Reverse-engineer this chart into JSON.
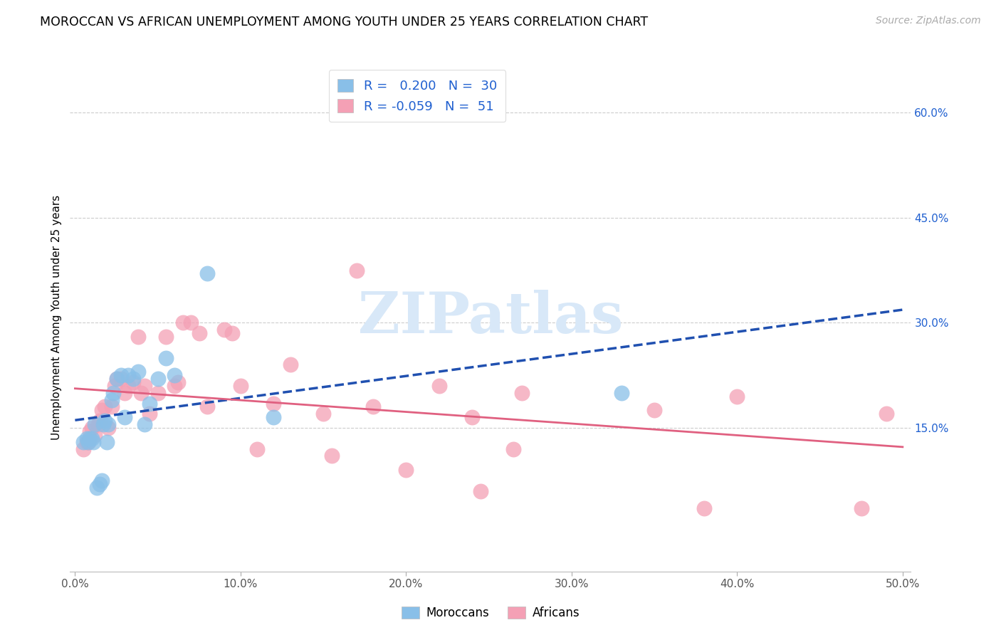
{
  "title": "MOROCCAN VS AFRICAN UNEMPLOYMENT AMONG YOUTH UNDER 25 YEARS CORRELATION CHART",
  "source": "Source: ZipAtlas.com",
  "ylabel": "Unemployment Among Youth under 25 years",
  "xlim": [
    -0.003,
    0.505
  ],
  "ylim": [
    -0.055,
    0.67
  ],
  "xtick_vals": [
    0.0,
    0.1,
    0.2,
    0.3,
    0.4,
    0.5
  ],
  "xticklabels": [
    "0.0%",
    "10.0%",
    "20.0%",
    "30.0%",
    "40.0%",
    "50.0%"
  ],
  "ytick_right_vals": [
    0.15,
    0.3,
    0.45,
    0.6
  ],
  "ytick_right_labels": [
    "15.0%",
    "30.0%",
    "45.0%",
    "60.0%"
  ],
  "moroccan_R": 0.2,
  "moroccan_N": 30,
  "african_R": -0.059,
  "african_N": 51,
  "moroccan_color": "#89bfe8",
  "african_color": "#f4a0b5",
  "moroccan_line_color": "#2050b0",
  "african_line_color": "#e06080",
  "legend_text_color": "#2060d0",
  "watermark_color": "#d8e8f8",
  "moroccan_points_x": [
    0.005,
    0.007,
    0.008,
    0.009,
    0.01,
    0.011,
    0.012,
    0.013,
    0.015,
    0.016,
    0.017,
    0.018,
    0.019,
    0.02,
    0.022,
    0.023,
    0.025,
    0.028,
    0.03,
    0.032,
    0.035,
    0.038,
    0.042,
    0.045,
    0.05,
    0.055,
    0.06,
    0.08,
    0.12,
    0.33
  ],
  "moroccan_points_y": [
    0.13,
    0.135,
    0.13,
    0.135,
    0.135,
    0.13,
    0.155,
    0.065,
    0.07,
    0.075,
    0.155,
    0.16,
    0.13,
    0.155,
    0.19,
    0.2,
    0.22,
    0.225,
    0.165,
    0.225,
    0.22,
    0.23,
    0.155,
    0.185,
    0.22,
    0.25,
    0.225,
    0.37,
    0.165,
    0.2
  ],
  "african_points_x": [
    0.005,
    0.007,
    0.008,
    0.009,
    0.01,
    0.012,
    0.014,
    0.015,
    0.016,
    0.018,
    0.02,
    0.022,
    0.024,
    0.025,
    0.028,
    0.03,
    0.032,
    0.035,
    0.038,
    0.04,
    0.042,
    0.045,
    0.05,
    0.055,
    0.06,
    0.062,
    0.065,
    0.07,
    0.075,
    0.08,
    0.09,
    0.095,
    0.1,
    0.11,
    0.12,
    0.13,
    0.15,
    0.155,
    0.17,
    0.18,
    0.2,
    0.22,
    0.24,
    0.245,
    0.265,
    0.27,
    0.35,
    0.38,
    0.4,
    0.475,
    0.49
  ],
  "african_points_y": [
    0.12,
    0.13,
    0.13,
    0.145,
    0.15,
    0.14,
    0.155,
    0.16,
    0.175,
    0.18,
    0.15,
    0.18,
    0.21,
    0.22,
    0.22,
    0.2,
    0.21,
    0.215,
    0.28,
    0.2,
    0.21,
    0.17,
    0.2,
    0.28,
    0.21,
    0.215,
    0.3,
    0.3,
    0.285,
    0.18,
    0.29,
    0.285,
    0.21,
    0.12,
    0.185,
    0.24,
    0.17,
    0.11,
    0.375,
    0.18,
    0.09,
    0.21,
    0.165,
    0.06,
    0.12,
    0.2,
    0.175,
    0.035,
    0.195,
    0.035,
    0.17
  ]
}
